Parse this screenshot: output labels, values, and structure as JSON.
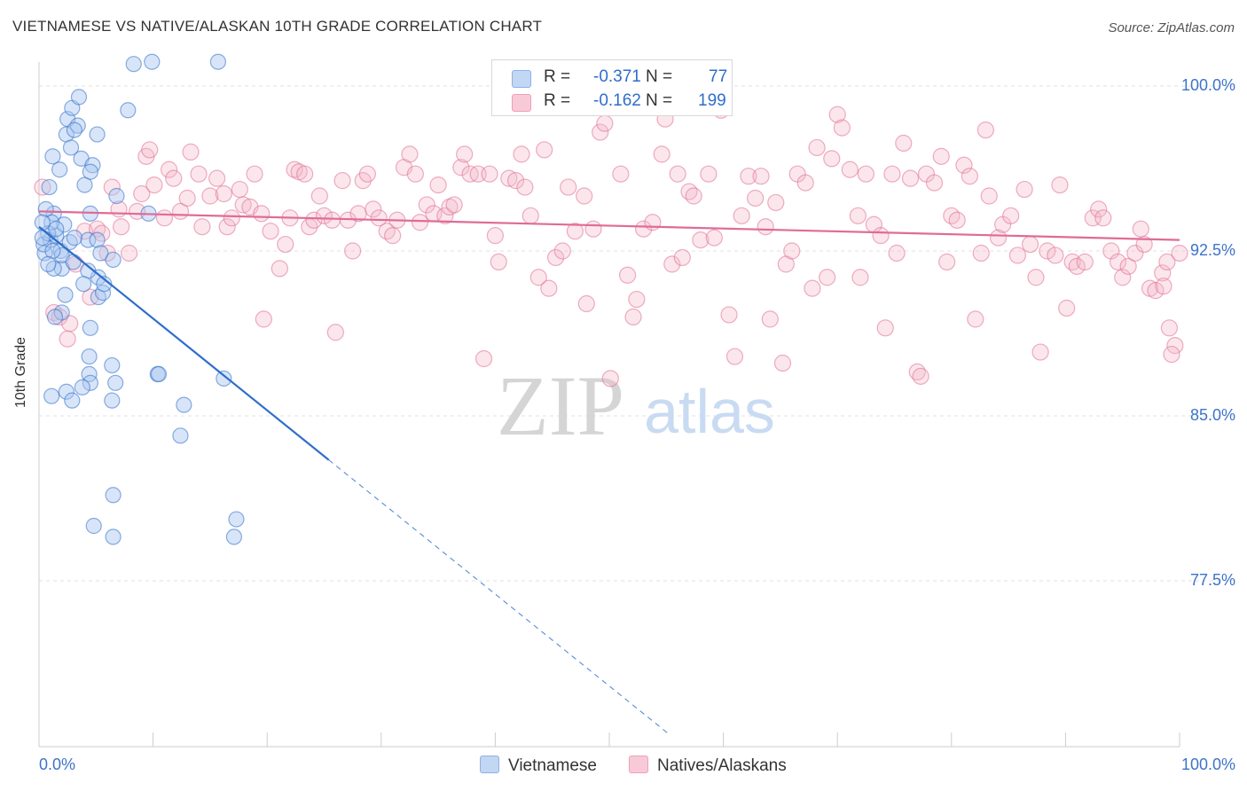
{
  "header": {
    "title": "VIETNAMESE VS NATIVE/ALASKAN 10TH GRADE CORRELATION CHART",
    "source": "Source: ZipAtlas.com"
  },
  "colors": {
    "blue": "#2e6ec9",
    "blue_fill": "#a8c6f0",
    "pink": "#e06b96",
    "pink_fill": "#f4b6c9",
    "axis_text": "#3d74c8",
    "grid": "#e2e2e2"
  },
  "stats": {
    "vietnamese": {
      "r_label": "R =",
      "r_value": "-0.371",
      "n_label": "N =",
      "n_value": "77"
    },
    "natives": {
      "r_label": "R =",
      "r_value": "-0.162",
      "n_label": "N =",
      "n_value": "199"
    }
  },
  "legend": {
    "vietnamese": "Vietnamese",
    "natives": "Natives/Alaskans"
  },
  "watermark": {
    "zip": "ZIP",
    "atlas": "atlas"
  },
  "chart_data": {
    "type": "scatter",
    "title": "VIETNAMESE VS NATIVE/ALASKAN 10TH GRADE CORRELATION CHART",
    "xlabel": "",
    "ylabel": "10th Grade",
    "x_tick_labels": [
      "0.0%",
      "100.0%"
    ],
    "y_tick_labels": [
      "100.0%",
      "92.5%",
      "85.0%",
      "77.5%"
    ],
    "y_ticks": [
      100.0,
      92.5,
      85.0,
      77.5
    ],
    "xlim": [
      0,
      100
    ],
    "ylim": [
      70.0,
      101.0
    ],
    "grid": true,
    "series": [
      {
        "name": "Vietnamese",
        "color": "#2e6ec9",
        "trend": {
          "x0": 0.0,
          "y0": 93.6,
          "x1": 25.4,
          "y1": 83.0,
          "dashed_to_x": 55.3,
          "dashed_to_y": 70.5
        },
        "points": [
          [
            0.5,
            92.4
          ],
          [
            0.9,
            95.4
          ],
          [
            1.0,
            93.0
          ],
          [
            0.4,
            92.8
          ],
          [
            1.3,
            94.2
          ],
          [
            1.5,
            93.2
          ],
          [
            1.9,
            92.5
          ],
          [
            2.2,
            93.7
          ],
          [
            2.0,
            91.7
          ],
          [
            2.7,
            92.9
          ],
          [
            1.2,
            96.8
          ],
          [
            2.4,
            97.8
          ],
          [
            2.5,
            98.5
          ],
          [
            2.9,
            99.0
          ],
          [
            3.5,
            99.5
          ],
          [
            3.4,
            98.2
          ],
          [
            2.8,
            97.2
          ],
          [
            1.8,
            96.2
          ],
          [
            3.7,
            96.7
          ],
          [
            3.1,
            98.0
          ],
          [
            5.1,
            97.8
          ],
          [
            7.8,
            98.9
          ],
          [
            8.3,
            101.0
          ],
          [
            9.9,
            101.1
          ],
          [
            15.7,
            101.1
          ],
          [
            4.7,
            96.4
          ],
          [
            4.0,
            95.5
          ],
          [
            4.5,
            94.2
          ],
          [
            6.8,
            95.0
          ],
          [
            1.1,
            93.8
          ],
          [
            1.3,
            91.7
          ],
          [
            2.0,
            92.3
          ],
          [
            3.0,
            92.0
          ],
          [
            4.3,
            93.0
          ],
          [
            5.1,
            93.0
          ],
          [
            5.4,
            92.4
          ],
          [
            6.5,
            92.1
          ],
          [
            5.2,
            91.3
          ],
          [
            4.3,
            91.6
          ],
          [
            5.2,
            90.4
          ],
          [
            5.6,
            90.6
          ],
          [
            5.7,
            91.0
          ],
          [
            3.9,
            91.0
          ],
          [
            2.3,
            90.5
          ],
          [
            2.0,
            89.7
          ],
          [
            1.4,
            89.5
          ],
          [
            4.5,
            89.0
          ],
          [
            4.4,
            87.7
          ],
          [
            6.4,
            87.3
          ],
          [
            4.4,
            86.9
          ],
          [
            4.5,
            86.5
          ],
          [
            6.7,
            86.5
          ],
          [
            3.8,
            86.3
          ],
          [
            2.4,
            86.1
          ],
          [
            1.1,
            85.9
          ],
          [
            6.4,
            85.7
          ],
          [
            2.9,
            85.7
          ],
          [
            10.4,
            86.9
          ],
          [
            10.5,
            86.9
          ],
          [
            16.2,
            86.7
          ],
          [
            12.7,
            85.5
          ],
          [
            12.4,
            84.1
          ],
          [
            6.5,
            81.4
          ],
          [
            4.8,
            80.0
          ],
          [
            6.5,
            79.5
          ],
          [
            17.3,
            80.3
          ],
          [
            17.1,
            79.5
          ],
          [
            0.8,
            93.3
          ],
          [
            1.5,
            93.5
          ],
          [
            3.1,
            93.1
          ],
          [
            0.6,
            94.4
          ],
          [
            0.3,
            93.8
          ],
          [
            0.3,
            93.1
          ],
          [
            1.2,
            92.5
          ],
          [
            0.8,
            91.9
          ],
          [
            4.5,
            96.1
          ],
          [
            9.6,
            94.2
          ]
        ]
      },
      {
        "name": "Natives/Alaskans",
        "color": "#e06b96",
        "trend": {
          "x0": 0.0,
          "y0": 94.3,
          "x1": 100.0,
          "y1": 93.0
        },
        "points": [
          [
            0.3,
            95.4
          ],
          [
            1.3,
            89.7
          ],
          [
            1.8,
            89.5
          ],
          [
            2.5,
            88.5
          ],
          [
            2.7,
            89.2
          ],
          [
            3.2,
            91.9
          ],
          [
            4.0,
            93.4
          ],
          [
            4.5,
            90.4
          ],
          [
            5.1,
            93.5
          ],
          [
            5.5,
            93.3
          ],
          [
            6.0,
            92.4
          ],
          [
            6.4,
            95.4
          ],
          [
            7.0,
            94.4
          ],
          [
            7.2,
            93.6
          ],
          [
            7.9,
            92.4
          ],
          [
            8.6,
            94.3
          ],
          [
            9.0,
            95.1
          ],
          [
            9.4,
            96.8
          ],
          [
            9.7,
            97.1
          ],
          [
            10.1,
            95.5
          ],
          [
            11.0,
            94.0
          ],
          [
            11.4,
            96.2
          ],
          [
            11.8,
            95.8
          ],
          [
            12.4,
            94.3
          ],
          [
            13.0,
            94.9
          ],
          [
            13.3,
            97.0
          ],
          [
            14.0,
            96.0
          ],
          [
            14.3,
            93.6
          ],
          [
            15.0,
            95.0
          ],
          [
            15.6,
            95.8
          ],
          [
            16.2,
            95.1
          ],
          [
            16.5,
            93.6
          ],
          [
            16.9,
            94.0
          ],
          [
            17.6,
            95.3
          ],
          [
            17.9,
            94.6
          ],
          [
            18.5,
            94.5
          ],
          [
            18.9,
            96.0
          ],
          [
            19.5,
            94.2
          ],
          [
            19.7,
            89.4
          ],
          [
            20.3,
            93.4
          ],
          [
            21.1,
            91.7
          ],
          [
            21.6,
            92.8
          ],
          [
            22.0,
            94.0
          ],
          [
            22.4,
            96.2
          ],
          [
            22.8,
            96.1
          ],
          [
            23.3,
            96.0
          ],
          [
            23.7,
            93.6
          ],
          [
            24.1,
            93.9
          ],
          [
            24.6,
            95.0
          ],
          [
            25.0,
            94.1
          ],
          [
            25.7,
            93.9
          ],
          [
            26.0,
            88.8
          ],
          [
            26.6,
            95.7
          ],
          [
            27.1,
            93.9
          ],
          [
            27.5,
            92.5
          ],
          [
            28.0,
            94.2
          ],
          [
            28.4,
            95.7
          ],
          [
            28.8,
            96.0
          ],
          [
            29.3,
            94.4
          ],
          [
            29.8,
            94.0
          ],
          [
            30.5,
            93.4
          ],
          [
            31.0,
            93.2
          ],
          [
            31.4,
            93.9
          ],
          [
            32.0,
            96.3
          ],
          [
            32.5,
            96.9
          ],
          [
            33.0,
            96.0
          ],
          [
            33.4,
            93.8
          ],
          [
            34.0,
            94.6
          ],
          [
            34.6,
            94.2
          ],
          [
            35.0,
            95.5
          ],
          [
            35.6,
            94.1
          ],
          [
            36.0,
            94.5
          ],
          [
            36.4,
            94.6
          ],
          [
            37.0,
            96.3
          ],
          [
            37.3,
            96.9
          ],
          [
            37.8,
            96.0
          ],
          [
            38.5,
            96.0
          ],
          [
            39.0,
            87.6
          ],
          [
            39.5,
            96.0
          ],
          [
            40.0,
            93.2
          ],
          [
            40.3,
            92.0
          ],
          [
            41.2,
            95.8
          ],
          [
            41.8,
            95.7
          ],
          [
            42.3,
            96.9
          ],
          [
            42.6,
            95.4
          ],
          [
            43.1,
            94.1
          ],
          [
            43.8,
            91.3
          ],
          [
            44.3,
            97.1
          ],
          [
            44.7,
            90.8
          ],
          [
            45.3,
            92.2
          ],
          [
            45.9,
            92.5
          ],
          [
            46.4,
            95.4
          ],
          [
            47.0,
            93.4
          ],
          [
            47.8,
            95.0
          ],
          [
            48.0,
            90.1
          ],
          [
            48.6,
            93.5
          ],
          [
            49.2,
            97.9
          ],
          [
            49.6,
            98.3
          ],
          [
            50.1,
            86.7
          ],
          [
            51.0,
            96.0
          ],
          [
            51.6,
            91.4
          ],
          [
            52.1,
            89.5
          ],
          [
            52.4,
            90.3
          ],
          [
            53.0,
            93.5
          ],
          [
            53.8,
            93.8
          ],
          [
            54.6,
            96.9
          ],
          [
            54.9,
            98.5
          ],
          [
            55.5,
            91.9
          ],
          [
            56.0,
            96.0
          ],
          [
            56.4,
            92.2
          ],
          [
            57.0,
            95.2
          ],
          [
            57.4,
            95.0
          ],
          [
            58.0,
            93.0
          ],
          [
            58.7,
            96.0
          ],
          [
            59.2,
            93.1
          ],
          [
            59.8,
            98.9
          ],
          [
            60.5,
            89.6
          ],
          [
            61.0,
            87.7
          ],
          [
            61.6,
            94.1
          ],
          [
            62.2,
            95.9
          ],
          [
            62.8,
            94.9
          ],
          [
            63.3,
            95.9
          ],
          [
            63.7,
            93.6
          ],
          [
            64.1,
            89.4
          ],
          [
            64.6,
            94.7
          ],
          [
            65.2,
            87.4
          ],
          [
            65.5,
            91.9
          ],
          [
            66.0,
            92.5
          ],
          [
            66.5,
            96.0
          ],
          [
            67.2,
            95.6
          ],
          [
            67.8,
            90.8
          ],
          [
            68.2,
            97.2
          ],
          [
            69.1,
            91.3
          ],
          [
            69.5,
            96.7
          ],
          [
            70.0,
            98.7
          ],
          [
            70.4,
            98.1
          ],
          [
            71.1,
            96.2
          ],
          [
            71.8,
            94.1
          ],
          [
            72.0,
            91.3
          ],
          [
            72.5,
            96.0
          ],
          [
            73.2,
            93.7
          ],
          [
            73.8,
            93.2
          ],
          [
            74.2,
            89.0
          ],
          [
            74.8,
            96.0
          ],
          [
            75.2,
            92.4
          ],
          [
            75.8,
            97.4
          ],
          [
            76.4,
            95.8
          ],
          [
            77.0,
            87.0
          ],
          [
            77.3,
            86.8
          ],
          [
            77.8,
            96.0
          ],
          [
            78.5,
            95.6
          ],
          [
            79.1,
            96.8
          ],
          [
            79.6,
            92.0
          ],
          [
            80.0,
            94.1
          ],
          [
            80.5,
            93.9
          ],
          [
            81.1,
            96.4
          ],
          [
            81.6,
            95.9
          ],
          [
            82.1,
            89.4
          ],
          [
            82.6,
            92.4
          ],
          [
            83.0,
            98.0
          ],
          [
            83.3,
            95.0
          ],
          [
            84.1,
            93.1
          ],
          [
            84.5,
            93.7
          ],
          [
            85.2,
            94.1
          ],
          [
            85.8,
            92.3
          ],
          [
            86.4,
            95.3
          ],
          [
            86.9,
            92.8
          ],
          [
            87.4,
            91.3
          ],
          [
            87.8,
            87.9
          ],
          [
            88.4,
            92.5
          ],
          [
            89.1,
            92.3
          ],
          [
            89.5,
            95.5
          ],
          [
            90.1,
            89.9
          ],
          [
            90.6,
            92.0
          ],
          [
            91.0,
            91.8
          ],
          [
            91.7,
            92.0
          ],
          [
            92.4,
            94.0
          ],
          [
            92.9,
            94.4
          ],
          [
            93.3,
            94.0
          ],
          [
            94.0,
            92.5
          ],
          [
            94.6,
            92.0
          ],
          [
            95.0,
            91.3
          ],
          [
            95.5,
            91.8
          ],
          [
            96.1,
            92.4
          ],
          [
            96.6,
            93.5
          ],
          [
            96.9,
            92.8
          ],
          [
            97.4,
            90.8
          ],
          [
            97.9,
            90.7
          ],
          [
            98.5,
            91.5
          ],
          [
            98.9,
            92.0
          ],
          [
            99.1,
            89.0
          ],
          [
            99.6,
            88.2
          ],
          [
            100.0,
            92.4
          ],
          [
            98.6,
            90.9
          ],
          [
            99.3,
            87.8
          ]
        ]
      }
    ]
  }
}
